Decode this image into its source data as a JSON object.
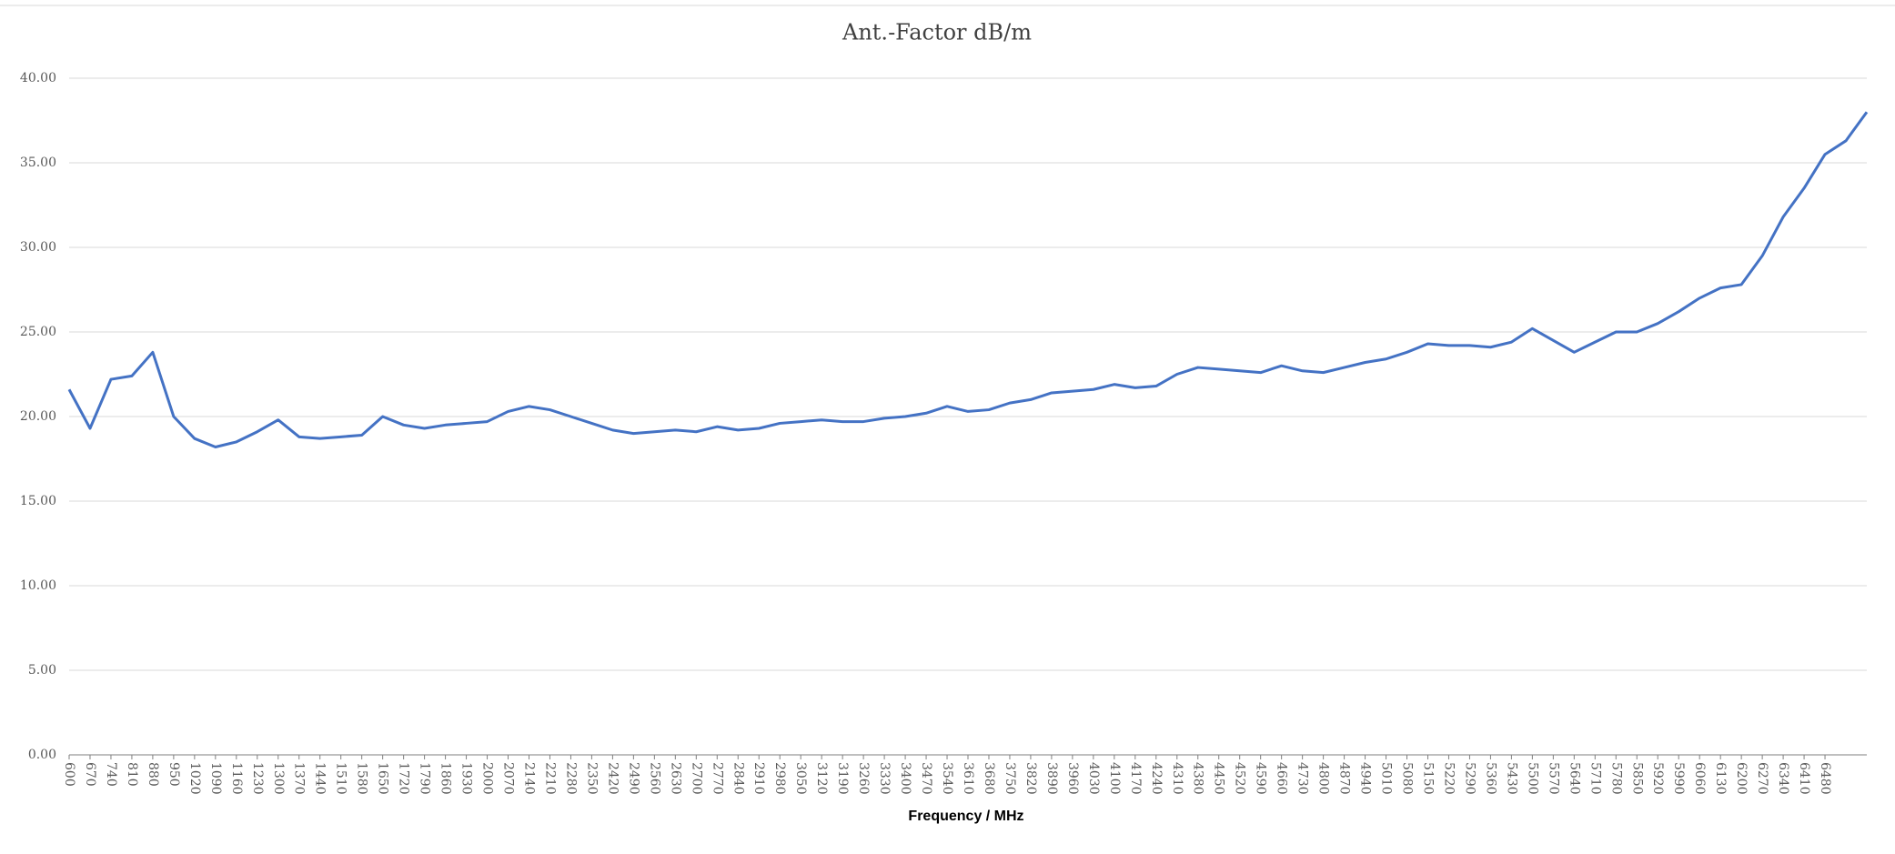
{
  "chart_data": {
    "type": "line",
    "title": "Ant.-Factor dB/m",
    "x_label": "Frequency / MHz",
    "x": [
      600,
      670,
      740,
      810,
      880,
      950,
      1020,
      1090,
      1160,
      1230,
      1300,
      1370,
      1440,
      1510,
      1580,
      1650,
      1720,
      1790,
      1860,
      1930,
      2000,
      2070,
      2140,
      2210,
      2280,
      2350,
      2420,
      2490,
      2560,
      2630,
      2700,
      2770,
      2840,
      2910,
      2980,
      3050,
      3120,
      3190,
      3260,
      3330,
      3400,
      3470,
      3540,
      3610,
      3680,
      3750,
      3820,
      3890,
      3960,
      4030,
      4100,
      4170,
      4240,
      4310,
      4380,
      4450,
      4520,
      4590,
      4660,
      4730,
      4800,
      4870,
      4940,
      5010,
      5080,
      5150,
      5220,
      5290,
      5360,
      5430,
      5500,
      5570,
      5640,
      5710,
      5780,
      5850,
      5920,
      5990,
      6060,
      6130,
      6200,
      6270,
      6340,
      6410,
      6480,
      6550,
      6620
    ],
    "series": [
      {
        "color": "#4472c4",
        "values": [
          21.6,
          19.3,
          22.2,
          22.4,
          23.8,
          20.0,
          18.7,
          18.2,
          18.5,
          19.1,
          19.8,
          18.8,
          18.7,
          18.8,
          18.9,
          20.0,
          19.5,
          19.3,
          19.5,
          19.6,
          19.7,
          20.3,
          20.6,
          20.4,
          20.0,
          19.6,
          19.2,
          19.0,
          19.1,
          19.2,
          19.1,
          19.4,
          19.2,
          19.3,
          19.6,
          19.7,
          19.8,
          19.7,
          19.7,
          19.9,
          20.0,
          20.2,
          20.6,
          20.3,
          20.4,
          20.8,
          21.0,
          21.4,
          21.5,
          21.6,
          21.9,
          21.7,
          21.8,
          22.5,
          22.9,
          22.8,
          22.7,
          22.6,
          23.0,
          22.7,
          22.6,
          22.9,
          23.2,
          23.4,
          23.8,
          24.3,
          24.2,
          24.2,
          24.1,
          24.4,
          25.2,
          24.5,
          23.8,
          24.4,
          25.0,
          25.0,
          25.5,
          26.2,
          27.0,
          27.6,
          27.8,
          29.5,
          31.8,
          33.5,
          35.5,
          36.3,
          38.0
        ]
      }
    ],
    "xlim": [
      600,
      6620
    ],
    "xticks": [
      600,
      670,
      740,
      810,
      880,
      950,
      1020,
      1090,
      1160,
      1230,
      1300,
      1370,
      1440,
      1510,
      1580,
      1650,
      1720,
      1790,
      1860,
      1930,
      2000,
      2070,
      2140,
      2210,
      2280,
      2350,
      2420,
      2490,
      2560,
      2630,
      2700,
      2770,
      2840,
      2910,
      2980,
      3050,
      3120,
      3190,
      3260,
      3330,
      3400,
      3470,
      3540,
      3610,
      3680,
      3750,
      3820,
      3890,
      3960,
      4030,
      4100,
      4170,
      4240,
      4310,
      4380,
      4450,
      4520,
      4590,
      4660,
      4730,
      4800,
      4870,
      4940,
      5010,
      5080,
      5150,
      5220,
      5290,
      5360,
      5430,
      5500,
      5570,
      5640,
      5710,
      5780,
      5850,
      5920,
      5990,
      6060,
      6130,
      6200,
      6270,
      6340,
      6410,
      6480
    ],
    "ylim": [
      0,
      40
    ],
    "yticks": [
      {
        "value": 0,
        "label": "0.00"
      },
      {
        "value": 5,
        "label": "5.00"
      },
      {
        "value": 10,
        "label": "10.00"
      },
      {
        "value": 15,
        "label": "15.00"
      },
      {
        "value": 20,
        "label": "20.00"
      },
      {
        "value": 25,
        "label": "25.00"
      },
      {
        "value": 30,
        "label": "30.00"
      },
      {
        "value": 35,
        "label": "35.00"
      },
      {
        "value": 40,
        "label": "40.00"
      }
    ],
    "grid": true
  }
}
